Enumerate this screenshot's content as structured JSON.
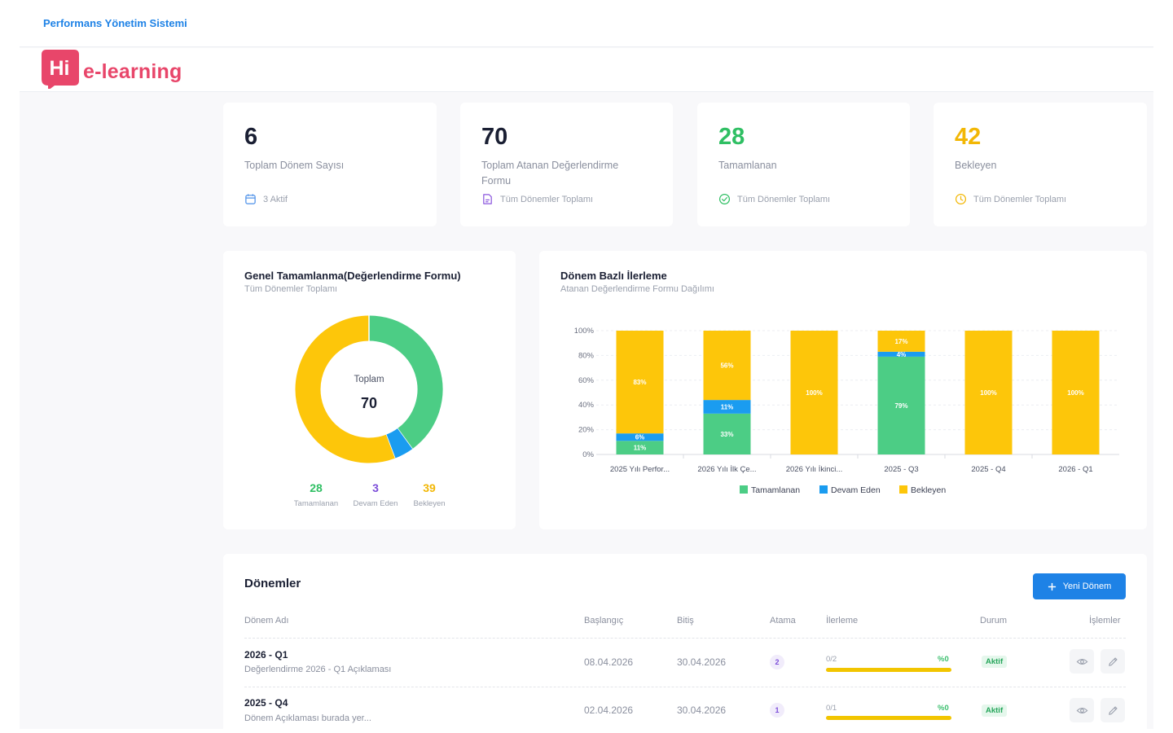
{
  "header": {
    "app_title": "Performans Yönetim Sistemi"
  },
  "logo": {
    "badge_text": "Hi",
    "text": "e-learning",
    "color": "#e8466a"
  },
  "stats": [
    {
      "value": "6",
      "label": "Toplam Dönem Sayısı",
      "foot": "3 Aktif",
      "icon": "calendar-icon",
      "color": "#1a1f33"
    },
    {
      "value": "70",
      "label": "Toplam Atanan Değerlendirme Formu",
      "foot": "Tüm Dönemler Toplamı",
      "icon": "document-icon",
      "color": "#1a1f33"
    },
    {
      "value": "28",
      "label": "Tamamlanan",
      "foot": "Tüm Dönemler Toplamı",
      "icon": "check-circle-icon",
      "color": "#2fbf63"
    },
    {
      "value": "42",
      "label": "Bekleyen",
      "foot": "Tüm Dönemler Toplamı",
      "icon": "clock-icon",
      "color": "#f2b705"
    }
  ],
  "donut": {
    "title": "Genel Tamamlanma(Değerlendirme Formu)",
    "subtitle": "Tüm Dönemler Toplamı",
    "center_label": "Toplam",
    "center_value": "70",
    "legend": [
      {
        "value": "28",
        "label": "Tamamlanan",
        "color": "#2fbf63"
      },
      {
        "value": "3",
        "label": "Devam Eden",
        "color": "#7c4dd9"
      },
      {
        "value": "39",
        "label": "Bekleyen",
        "color": "#f2b705"
      }
    ]
  },
  "bar_panel": {
    "title": "Dönem Bazlı İlerleme",
    "subtitle": "Atanan Değerlendirme Formu Dağılımı"
  },
  "chart_data": [
    {
      "type": "pie",
      "title": "Genel Tamamlanma(Değerlendirme Formu)",
      "subtitle": "Tüm Dönemler Toplamı",
      "categories": [
        "Tamamlanan",
        "Devam Eden",
        "Bekleyen"
      ],
      "values": [
        28,
        3,
        39
      ],
      "colors": [
        "#4ccd85",
        "#1a9cf0",
        "#fdc60a"
      ],
      "center_label": "Toplam",
      "center_value": 70
    },
    {
      "type": "bar",
      "stacked": true,
      "title": "Dönem Bazlı İlerleme",
      "subtitle": "Atanan Değerlendirme Formu Dağılımı",
      "categories": [
        "2025 Yılı Perfor...",
        "2026 Yılı İlk Çe...",
        "2026 Yılı İkinci...",
        "2025 - Q3",
        "2025 - Q4",
        "2026 - Q1"
      ],
      "series": [
        {
          "name": "Tamamlanan",
          "color": "#4ccd85",
          "values": [
            11,
            33,
            0,
            79,
            0,
            0
          ]
        },
        {
          "name": "Devam Eden",
          "color": "#1a9cf0",
          "values": [
            6,
            11,
            0,
            4,
            0,
            0
          ]
        },
        {
          "name": "Bekleyen",
          "color": "#fdc60a",
          "values": [
            83,
            56,
            100,
            17,
            100,
            100
          ]
        }
      ],
      "ylim": [
        0,
        100
      ],
      "yticks": [
        "0%",
        "20%",
        "40%",
        "60%",
        "80%",
        "100%"
      ],
      "grid": true,
      "legend_position": "bottom"
    }
  ],
  "periods": {
    "title": "Dönemler",
    "new_button": "Yeni Dönem",
    "columns": [
      "Dönem Adı",
      "Başlangıç",
      "Bitiş",
      "Atama",
      "İlerleme",
      "Durum",
      "İşlemler"
    ],
    "rows": [
      {
        "name": "2026 - Q1",
        "desc": "Değerlendirme 2026 - Q1 Açıklaması",
        "start": "08.04.2026",
        "end": "30.04.2026",
        "count": "2",
        "progress_text": "0/2",
        "progress_pct": "%0",
        "progress": 0,
        "status": "Aktif"
      },
      {
        "name": "2025 - Q4",
        "desc": "Dönem Açıklaması burada yer...",
        "start": "02.04.2026",
        "end": "30.04.2026",
        "count": "1",
        "progress_text": "0/1",
        "progress_pct": "%0",
        "progress": 0,
        "status": "Aktif"
      }
    ]
  }
}
